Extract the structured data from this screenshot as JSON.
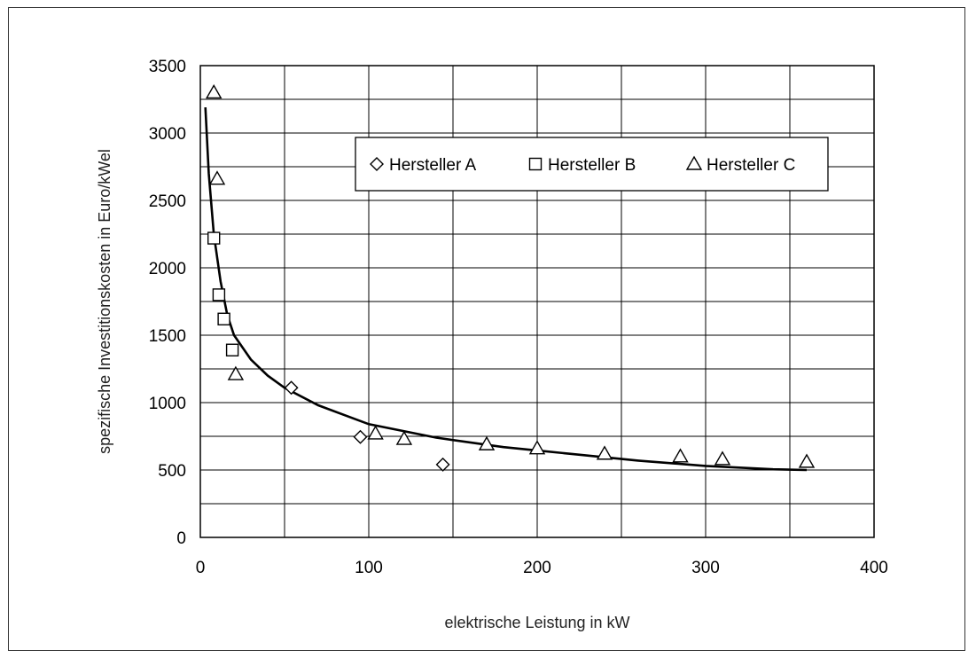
{
  "chart_data": {
    "type": "scatter",
    "xlabel": "elektrische Leistung in kW",
    "ylabel": "spezifische Investitionskosten in Euro/kWel",
    "xlim": [
      0,
      400
    ],
    "ylim": [
      0,
      3500
    ],
    "x_ticks": [
      "0",
      "100",
      "200",
      "300",
      "400"
    ],
    "y_ticks": [
      "0",
      "500",
      "1000",
      "1500",
      "2000",
      "2500",
      "3000",
      "3500"
    ],
    "grid": true,
    "legend_position": "top-right",
    "series": [
      {
        "name": "Hersteller A",
        "marker": "diamond",
        "points": [
          [
            54,
            1110
          ],
          [
            95,
            745
          ],
          [
            144,
            540
          ]
        ]
      },
      {
        "name": "Hersteller B",
        "marker": "square",
        "points": [
          [
            8,
            2220
          ],
          [
            11,
            1800
          ],
          [
            14,
            1620
          ],
          [
            19,
            1390
          ]
        ]
      },
      {
        "name": "Hersteller C",
        "marker": "triangle",
        "points": [
          [
            8,
            3300
          ],
          [
            10,
            2660
          ],
          [
            21,
            1210
          ],
          [
            104,
            770
          ],
          [
            121,
            730
          ],
          [
            170,
            690
          ],
          [
            200,
            660
          ],
          [
            240,
            620
          ],
          [
            285,
            600
          ],
          [
            310,
            580
          ],
          [
            360,
            560
          ]
        ]
      }
    ],
    "trend_line": [
      [
        3,
        3190
      ],
      [
        5,
        2700
      ],
      [
        8,
        2250
      ],
      [
        12,
        1900
      ],
      [
        16,
        1650
      ],
      [
        20,
        1500
      ],
      [
        30,
        1320
      ],
      [
        40,
        1200
      ],
      [
        50,
        1110
      ],
      [
        70,
        980
      ],
      [
        100,
        840
      ],
      [
        140,
        740
      ],
      [
        180,
        670
      ],
      [
        220,
        620
      ],
      [
        260,
        570
      ],
      [
        300,
        530
      ],
      [
        340,
        505
      ],
      [
        360,
        500
      ]
    ]
  }
}
